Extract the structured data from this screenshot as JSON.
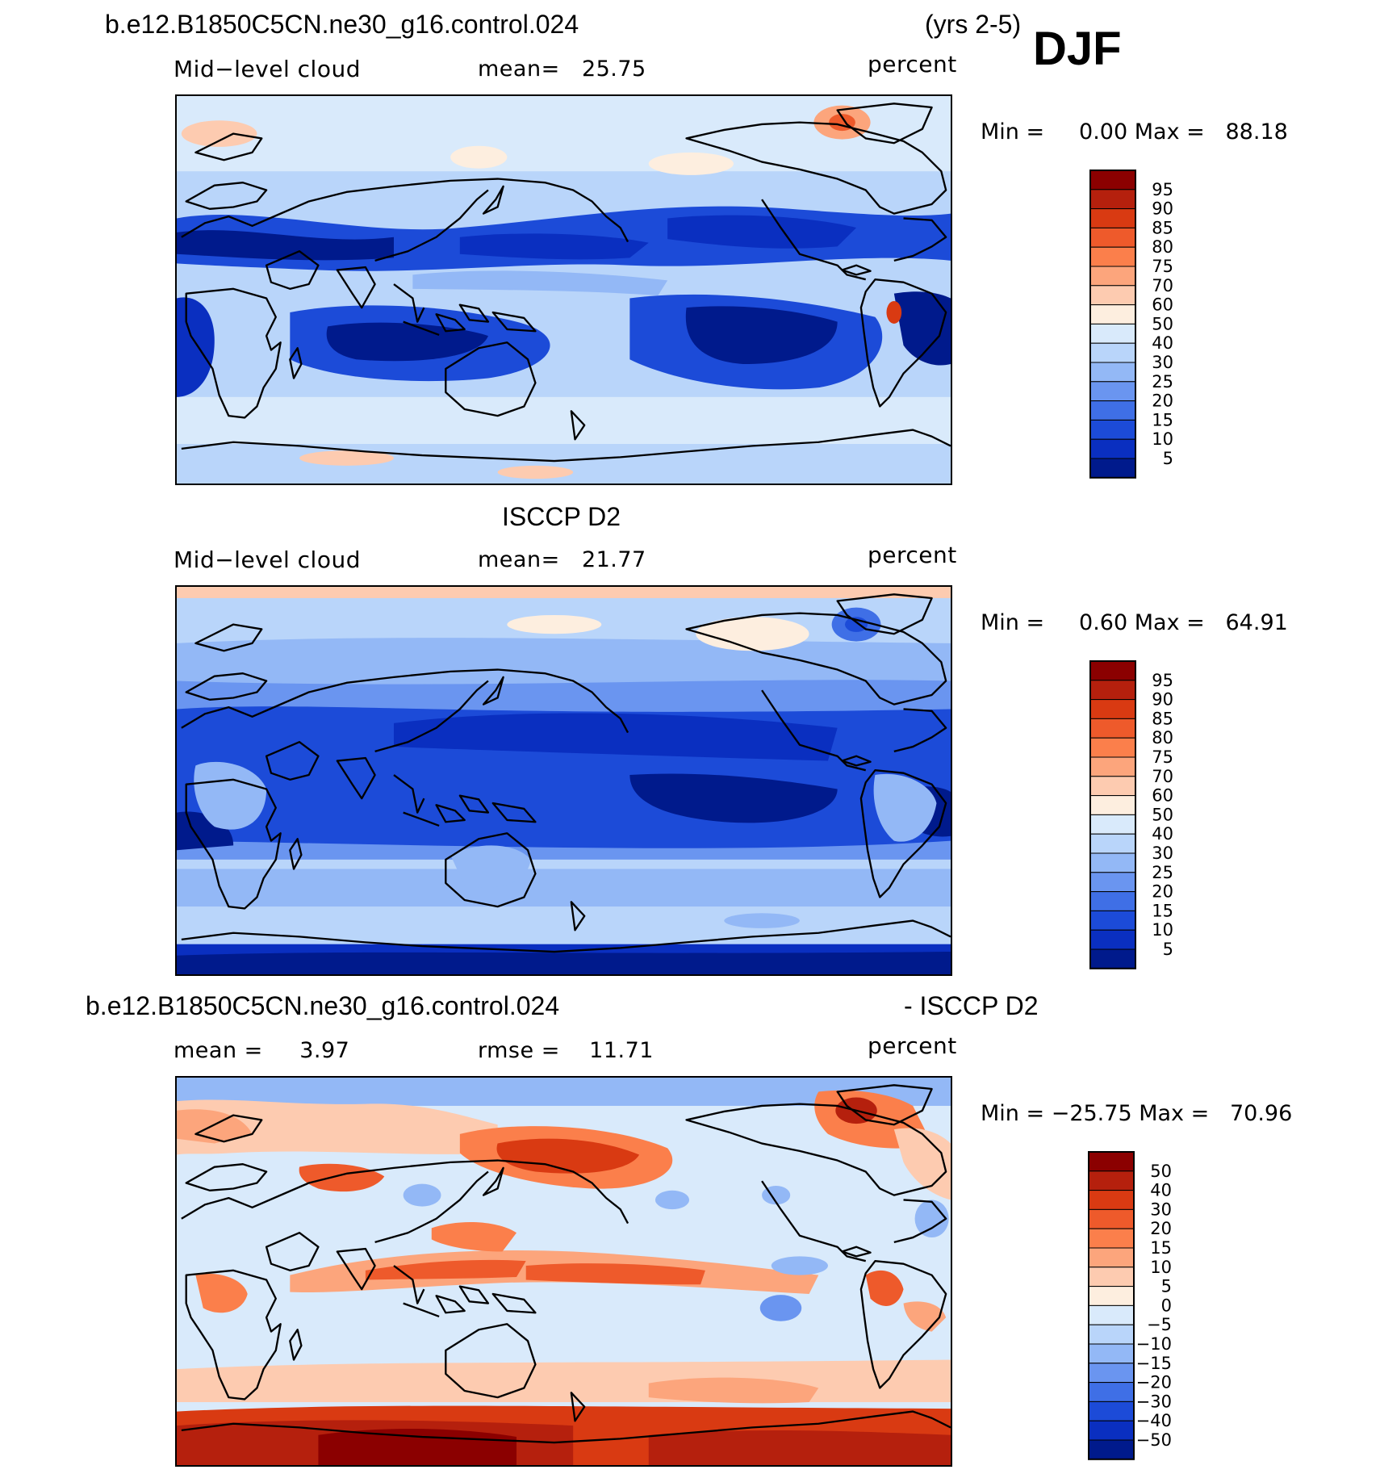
{
  "header": {
    "case_name": "b.e12.B1850C5CN.ne30_g16.control.024",
    "years": "(yrs 2-5)",
    "season": "DJF"
  },
  "panels": [
    {
      "id": "model",
      "title": "",
      "left_label": "Mid−level cloud",
      "center_label": "mean=   25.75",
      "right_label": "percent",
      "minmax": "Min =     0.00 Max =   88.18",
      "colorbar": {
        "labels": [
          "95",
          "90",
          "85",
          "80",
          "75",
          "70",
          "60",
          "50",
          "40",
          "30",
          "25",
          "20",
          "15",
          "10",
          "5"
        ],
        "colors": [
          "#8b0000",
          "#b5200d",
          "#d93a12",
          "#ee5a2b",
          "#fb7f4b",
          "#fca57c",
          "#fdcbb0",
          "#fdeedf",
          "#d9eafb",
          "#b9d5fa",
          "#93b8f6",
          "#6a95f0",
          "#3f6fe6",
          "#1c4bd8",
          "#0a2fc0",
          "#001a8c"
        ]
      }
    },
    {
      "id": "obs",
      "title": "ISCCP D2",
      "left_label": "Mid−level cloud",
      "center_label": "mean=   21.77",
      "right_label": "percent",
      "minmax": "Min =     0.60 Max =   64.91",
      "colorbar": {
        "labels": [
          "95",
          "90",
          "85",
          "80",
          "75",
          "70",
          "60",
          "50",
          "40",
          "30",
          "25",
          "20",
          "15",
          "10",
          "5"
        ],
        "colors": [
          "#8b0000",
          "#b5200d",
          "#d93a12",
          "#ee5a2b",
          "#fb7f4b",
          "#fca57c",
          "#fdcbb0",
          "#fdeedf",
          "#d9eafb",
          "#b9d5fa",
          "#93b8f6",
          "#6a95f0",
          "#3f6fe6",
          "#1c4bd8",
          "#0a2fc0",
          "#001a8c"
        ]
      }
    },
    {
      "id": "diff",
      "title_left": "b.e12.B1850C5CN.ne30_g16.control.024",
      "title_right": "- ISCCP D2",
      "left_label": "mean =     3.97",
      "center_label": "rmse =    11.71",
      "right_label": "percent",
      "minmax": "Min = −25.75 Max =   70.96",
      "colorbar": {
        "labels": [
          "50",
          "40",
          "30",
          "20",
          "15",
          "10",
          "5",
          "0",
          "−5",
          "−10",
          "−15",
          "−20",
          "−30",
          "−40",
          "−50"
        ],
        "colors": [
          "#8b0000",
          "#b5200d",
          "#d93a12",
          "#ee5a2b",
          "#fb7f4b",
          "#fca57c",
          "#fdcbb0",
          "#fdeedf",
          "#d9eafb",
          "#b9d5fa",
          "#93b8f6",
          "#6a95f0",
          "#3f6fe6",
          "#1c4bd8",
          "#0a2fc0",
          "#001a8c"
        ]
      }
    }
  ]
}
